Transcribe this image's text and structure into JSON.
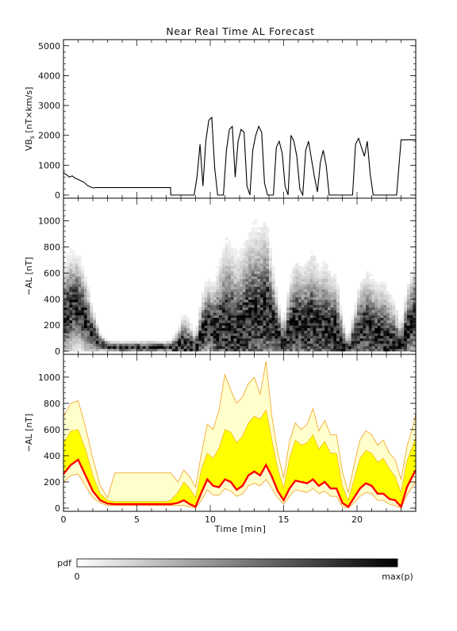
{
  "title": "Near Real Time AL Forecast",
  "xlabel": "Time [min]",
  "colorbar": {
    "label": "pdf",
    "min_label": "0",
    "max_label": "max(p)"
  },
  "colors": {
    "median": "#ff0000",
    "inner_band": "#ffff00",
    "outer_band": "#ffffcc",
    "band_edge": "#f0a020",
    "axes": "#000000"
  },
  "chart_data": [
    {
      "type": "line",
      "panel": "top",
      "ylabel": "VB",
      "ylabel_sub": "s",
      "ylabel_unit": "[nT×km/s]",
      "xlim": [
        0,
        24
      ],
      "ylim": [
        0,
        5100
      ],
      "yticks": [
        "0",
        "1000",
        "2000",
        "3000",
        "4000",
        "5000"
      ],
      "series": [
        {
          "x": [
            0,
            0.2,
            0.4,
            0.6,
            0.8,
            1.0,
            1.2,
            1.4,
            1.6,
            1.8,
            2.0,
            2.2,
            7.3,
            7.31,
            8.9,
            9.1,
            9.3,
            9.5,
            9.7,
            9.9,
            10.1,
            10.3,
            10.5,
            10.7,
            10.9,
            11.1,
            11.3,
            11.5,
            11.7,
            11.9,
            12.1,
            12.3,
            12.5,
            12.7,
            12.9,
            13.1,
            13.3,
            13.5,
            13.7,
            13.9,
            14.1,
            14.3,
            14.5,
            14.7,
            14.9,
            15.1,
            15.3,
            15.5,
            15.7,
            15.9,
            16.1,
            16.3,
            16.5,
            16.7,
            16.9,
            17.1,
            17.3,
            17.5,
            17.7,
            17.9,
            18.1,
            18.3,
            18.5,
            18.7,
            18.9,
            19.1,
            19.3,
            19.5,
            19.7,
            19.9,
            20.1,
            20.3,
            20.5,
            20.7,
            20.9,
            21.1,
            21.3,
            21.5,
            21.7,
            21.9,
            22.1,
            22.3,
            22.5,
            22.7,
            23.0,
            23.5,
            24.0
          ],
          "y": [
            750,
            680,
            600,
            640,
            560,
            520,
            470,
            430,
            330,
            280,
            240,
            250,
            250,
            0,
            0,
            600,
            1700,
            300,
            1800,
            2500,
            2600,
            900,
            0,
            0,
            0,
            1500,
            2200,
            2300,
            600,
            1800,
            2200,
            2100,
            300,
            0,
            1500,
            2000,
            2300,
            2100,
            400,
            0,
            0,
            0,
            1600,
            1800,
            1400,
            300,
            0,
            2000,
            1800,
            1300,
            200,
            0,
            1500,
            1800,
            1200,
            600,
            100,
            1100,
            1500,
            1000,
            0,
            0,
            0,
            0,
            0,
            0,
            0,
            0,
            0,
            1700,
            1900,
            1600,
            1300,
            1800,
            700,
            0,
            0,
            0,
            0,
            0,
            0,
            0,
            0,
            0,
            1850,
            1850,
            1850
          ]
        }
      ]
    },
    {
      "type": "heatmap",
      "panel": "middle",
      "ylabel": "−AL [nT]",
      "xlim": [
        0,
        24
      ],
      "ylim": [
        0,
        1150
      ],
      "yticks": [
        "0",
        "200",
        "400",
        "600",
        "800",
        "1000"
      ]
    },
    {
      "type": "area",
      "panel": "bottom",
      "ylabel": "−AL [nT]",
      "xlim": [
        0,
        24
      ],
      "ylim": [
        0,
        1150
      ],
      "yticks": [
        "0",
        "200",
        "400",
        "600",
        "800",
        "1000"
      ],
      "xticks": [
        "0",
        "5",
        "10",
        "15",
        "20"
      ],
      "x": [
        0,
        0.5,
        1.0,
        1.5,
        2.0,
        2.5,
        3.0,
        3.5,
        4.0,
        5.0,
        6.0,
        7.0,
        7.3,
        7.8,
        8.2,
        8.6,
        9.0,
        9.4,
        9.8,
        10.2,
        10.6,
        11.0,
        11.4,
        11.8,
        12.2,
        12.6,
        13.0,
        13.4,
        13.8,
        14.2,
        14.6,
        15.0,
        15.4,
        15.8,
        16.2,
        16.6,
        17.0,
        17.4,
        17.8,
        18.2,
        18.6,
        19.0,
        19.4,
        19.8,
        20.2,
        20.6,
        21.0,
        21.4,
        21.8,
        22.2,
        22.6,
        23.0,
        23.4,
        23.8,
        24.0
      ],
      "median": [
        260,
        330,
        370,
        250,
        130,
        60,
        35,
        30,
        30,
        30,
        30,
        30,
        30,
        40,
        60,
        30,
        10,
        120,
        220,
        170,
        160,
        220,
        200,
        140,
        170,
        250,
        280,
        250,
        330,
        240,
        130,
        60,
        150,
        210,
        200,
        190,
        220,
        170,
        200,
        150,
        150,
        40,
        10,
        80,
        150,
        190,
        170,
        110,
        110,
        70,
        60,
        10,
        160,
        250,
        290
      ],
      "inner_upper": [
        500,
        590,
        600,
        450,
        250,
        110,
        60,
        50,
        50,
        50,
        50,
        50,
        60,
        120,
        200,
        150,
        80,
        300,
        420,
        380,
        460,
        600,
        580,
        500,
        550,
        650,
        700,
        680,
        750,
        520,
        300,
        150,
        380,
        520,
        480,
        500,
        560,
        450,
        510,
        420,
        420,
        170,
        60,
        220,
        380,
        440,
        420,
        350,
        380,
        300,
        240,
        120,
        360,
        480,
        540
      ],
      "outer_upper": [
        700,
        800,
        820,
        620,
        380,
        170,
        80,
        270,
        270,
        270,
        270,
        270,
        270,
        200,
        290,
        240,
        160,
        420,
        640,
        600,
        750,
        1020,
        900,
        800,
        850,
        950,
        1000,
        870,
        1120,
        700,
        420,
        230,
        510,
        650,
        600,
        640,
        760,
        590,
        670,
        560,
        560,
        280,
        120,
        330,
        520,
        590,
        560,
        480,
        520,
        420,
        370,
        220,
        470,
        620,
        720
      ],
      "outer_lower": [
        200,
        250,
        260,
        170,
        80,
        40,
        20,
        20,
        20,
        20,
        20,
        20,
        20,
        20,
        20,
        10,
        0,
        60,
        140,
        100,
        100,
        150,
        130,
        90,
        110,
        170,
        190,
        170,
        220,
        150,
        80,
        30,
        90,
        140,
        130,
        120,
        150,
        110,
        130,
        90,
        90,
        10,
        0,
        40,
        90,
        120,
        110,
        60,
        60,
        30,
        20,
        0,
        100,
        170,
        200
      ]
    }
  ]
}
